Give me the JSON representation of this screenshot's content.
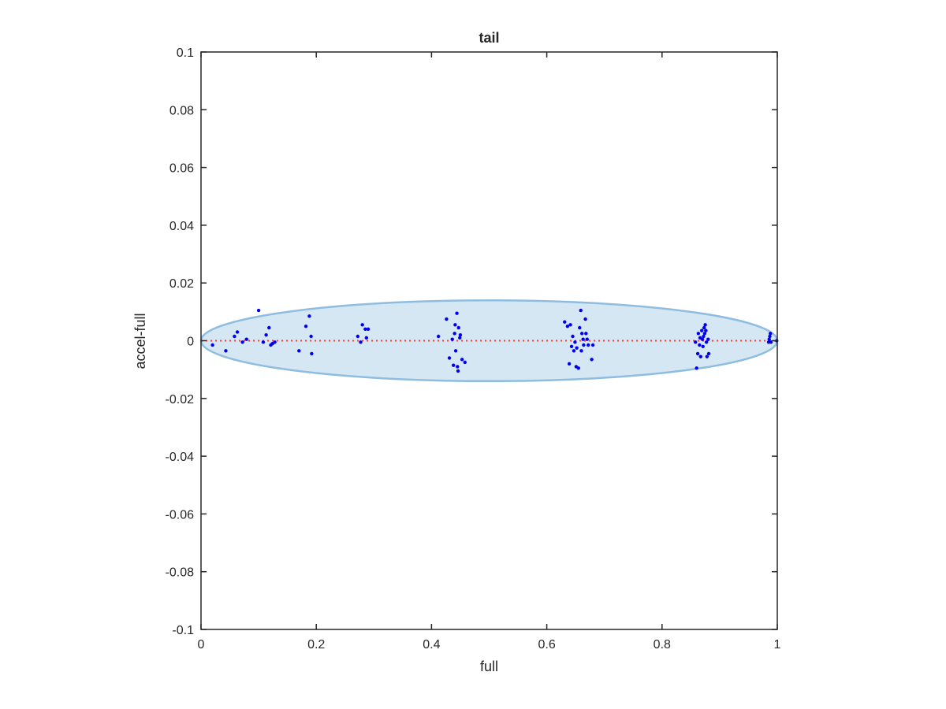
{
  "chart_data": {
    "type": "scatter",
    "title": "tail",
    "xlabel": "full",
    "ylabel": "accel-full",
    "xlim": [
      0,
      1
    ],
    "ylim": [
      -0.1,
      0.1
    ],
    "x_ticks": [
      0,
      0.2,
      0.4,
      0.6,
      0.8,
      1
    ],
    "x_tick_labels": [
      "0",
      "0.2",
      "0.4",
      "0.6",
      "0.8",
      "1"
    ],
    "y_ticks": [
      0.1,
      0.08,
      0.06,
      0.04,
      0.02,
      0,
      -0.02,
      -0.04,
      -0.06,
      -0.08,
      -0.1
    ],
    "y_tick_labels": [
      "0.1",
      "0.08",
      "0.06",
      "0.04",
      "0.02",
      "0",
      "-0.02",
      "-0.04",
      "-0.06",
      "-0.08",
      "-0.1"
    ],
    "grid": false,
    "box": true,
    "ellipse": {
      "cx": 0.5,
      "cy": 0,
      "rx": 0.5,
      "ry": 0.014,
      "fill": "#d6e7f4",
      "stroke": "#8fbde0"
    },
    "reference_line": {
      "y": 0,
      "color": "#ff3b3b",
      "style": "dotted"
    },
    "point_color": "#0000ee",
    "points": [
      [
        0.02,
        -0.0015
      ],
      [
        0.043,
        -0.0035
      ],
      [
        0.058,
        0.0015
      ],
      [
        0.063,
        0.003
      ],
      [
        0.072,
        -0.0005
      ],
      [
        0.079,
        0.0005
      ],
      [
        0.1,
        0.0105
      ],
      [
        0.108,
        -0.0005
      ],
      [
        0.113,
        0.002
      ],
      [
        0.118,
        0.0045
      ],
      [
        0.121,
        -0.0015
      ],
      [
        0.124,
        -0.001
      ],
      [
        0.128,
        -0.0005
      ],
      [
        0.17,
        -0.0035
      ],
      [
        0.182,
        0.005
      ],
      [
        0.188,
        0.0085
      ],
      [
        0.191,
        0.0015
      ],
      [
        0.192,
        -0.0045
      ],
      [
        0.272,
        0.0015
      ],
      [
        0.277,
        -0.0005
      ],
      [
        0.28,
        0.0055
      ],
      [
        0.285,
        0.004
      ],
      [
        0.287,
        0.001
      ],
      [
        0.29,
        0.004
      ],
      [
        0.412,
        0.0015
      ],
      [
        0.426,
        0.0075
      ],
      [
        0.431,
        -0.006
      ],
      [
        0.436,
        0.0005
      ],
      [
        0.438,
        -0.0085
      ],
      [
        0.44,
        0.0025
      ],
      [
        0.441,
        0.0055
      ],
      [
        0.442,
        -0.0035
      ],
      [
        0.444,
        0.0095
      ],
      [
        0.445,
        -0.009
      ],
      [
        0.446,
        -0.0105
      ],
      [
        0.447,
        0.0045
      ],
      [
        0.449,
        0.001
      ],
      [
        0.45,
        0.002
      ],
      [
        0.453,
        -0.0065
      ],
      [
        0.458,
        -0.0075
      ],
      [
        0.631,
        0.0065
      ],
      [
        0.636,
        0.005
      ],
      [
        0.639,
        -0.008
      ],
      [
        0.641,
        0.0055
      ],
      [
        0.643,
        -0.002
      ],
      [
        0.645,
        0.0015
      ],
      [
        0.647,
        -0.0035
      ],
      [
        0.649,
        -0.0005
      ],
      [
        0.651,
        -0.009
      ],
      [
        0.652,
        -0.0025
      ],
      [
        0.655,
        -0.0095
      ],
      [
        0.657,
        0.0045
      ],
      [
        0.659,
        0.0105
      ],
      [
        0.66,
        -0.0035
      ],
      [
        0.661,
        0.0025
      ],
      [
        0.663,
        0.0005
      ],
      [
        0.664,
        -0.0015
      ],
      [
        0.667,
        0.0075
      ],
      [
        0.668,
        0.0025
      ],
      [
        0.67,
        0.0005
      ],
      [
        0.672,
        -0.0015
      ],
      [
        0.678,
        -0.0065
      ],
      [
        0.68,
        -0.0015
      ],
      [
        0.858,
        -0.0005
      ],
      [
        0.86,
        -0.0095
      ],
      [
        0.862,
        -0.0045
      ],
      [
        0.863,
        0.0025
      ],
      [
        0.865,
        -0.0015
      ],
      [
        0.866,
        0.001
      ],
      [
        0.867,
        -0.0055
      ],
      [
        0.869,
        0.0035
      ],
      [
        0.87,
        0.0005
      ],
      [
        0.871,
        -0.002
      ],
      [
        0.872,
        0.0015
      ],
      [
        0.873,
        0.0045
      ],
      [
        0.874,
        0.0025
      ],
      [
        0.875,
        0.0055
      ],
      [
        0.876,
        0.0035
      ],
      [
        0.877,
        -0.0005
      ],
      [
        0.878,
        -0.0055
      ],
      [
        0.88,
        0.0005
      ],
      [
        0.881,
        -0.0045
      ],
      [
        0.985,
        -0.0005
      ],
      [
        0.986,
        0.0005
      ],
      [
        0.987,
        0.0015
      ],
      [
        0.988,
        0.0025
      ],
      [
        0.989,
        -0.0005
      ],
      [
        0.999,
        0.0
      ]
    ]
  }
}
